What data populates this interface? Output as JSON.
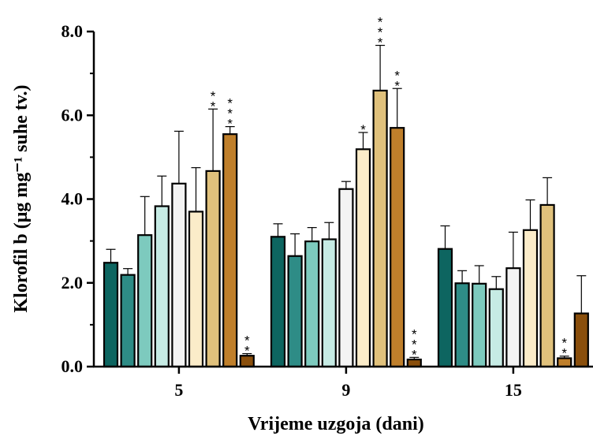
{
  "chart_data": {
    "type": "bar",
    "xlabel": "Vrijeme uzgoja (dani)",
    "ylabel": "Klorofil b (μg mg⁻¹ suhe tv.)",
    "ylim": [
      0,
      8
    ],
    "yticks": [
      "0.0",
      "2.0",
      "4.0",
      "6.0",
      "8.0"
    ],
    "grid": false,
    "categories": [
      "5",
      "9",
      "15"
    ],
    "series_colors": [
      "#0d6560",
      "#2e8c86",
      "#7dcabe",
      "#c6ebe4",
      "#f3f3f3",
      "#fbecc9",
      "#e0c17c",
      "#bf7f2b",
      "#8a4f0c"
    ],
    "groups": [
      {
        "category": "5",
        "values": [
          2.48,
          2.19,
          3.14,
          3.83,
          4.37,
          3.7,
          4.67,
          5.55,
          0.26
        ],
        "errors": [
          0.32,
          0.15,
          0.92,
          0.72,
          1.25,
          1.05,
          1.48,
          0.18,
          0.05
        ],
        "significance": [
          "",
          "",
          "",
          "",
          "",
          "",
          "**",
          "***",
          "**"
        ]
      },
      {
        "category": "9",
        "values": [
          3.1,
          2.64,
          2.99,
          3.04,
          4.24,
          5.19,
          6.59,
          5.7,
          0.17
        ],
        "errors": [
          0.31,
          0.53,
          0.33,
          0.4,
          0.18,
          0.4,
          1.08,
          0.94,
          0.05
        ],
        "significance": [
          "",
          "",
          "",
          "",
          "",
          "*",
          "***",
          "**",
          "***"
        ]
      },
      {
        "category": "15",
        "values": [
          2.81,
          1.99,
          1.98,
          1.85,
          2.35,
          3.26,
          3.86,
          0.2,
          1.27
        ],
        "errors": [
          0.55,
          0.3,
          0.43,
          0.3,
          0.86,
          0.72,
          0.65,
          0.05,
          0.9
        ],
        "significance": [
          "",
          "",
          "",
          "",
          "",
          "",
          "",
          "**",
          ""
        ]
      }
    ]
  }
}
